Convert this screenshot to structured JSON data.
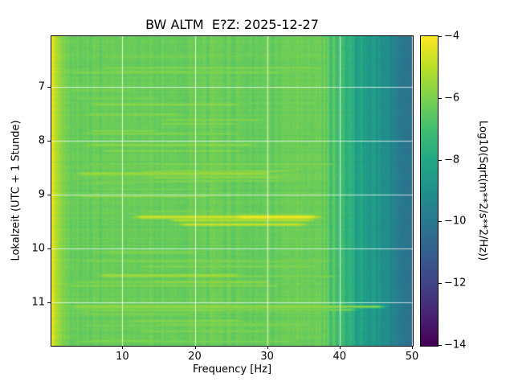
{
  "figure": {
    "background": "#ffffff"
  },
  "chart_data": {
    "type": "heatmap",
    "subtype": "spectrogram",
    "title": "BW ALTM  E?Z: 2025-12-27",
    "xlabel": "Frequency [Hz]",
    "ylabel": "Lokalzeit (UTC + 1 Stunde)",
    "colorbar_label": "Log10(Sqrt(m**2/s**2/Hz))",
    "colormap": "viridis",
    "grid": true,
    "xlim": [
      0.2,
      50
    ],
    "ylim": [
      6.05,
      11.8
    ],
    "y_inverted": true,
    "clim": [
      -14,
      -4
    ],
    "xticks": [
      {
        "value": 10,
        "label": "10"
      },
      {
        "value": 20,
        "label": "20"
      },
      {
        "value": 30,
        "label": "30"
      },
      {
        "value": 40,
        "label": "40"
      },
      {
        "value": 50,
        "label": "50"
      }
    ],
    "yticks": [
      {
        "value": 7,
        "label": "7"
      },
      {
        "value": 8,
        "label": "8"
      },
      {
        "value": 9,
        "label": "9"
      },
      {
        "value": 10,
        "label": "10"
      },
      {
        "value": 11,
        "label": "11"
      }
    ],
    "colorbar_ticks": [
      {
        "value": -4,
        "label": "−4"
      },
      {
        "value": -6,
        "label": "−6"
      },
      {
        "value": -8,
        "label": "−8"
      },
      {
        "value": -10,
        "label": "−10"
      },
      {
        "value": -12,
        "label": "−12"
      },
      {
        "value": -14,
        "label": "−14"
      }
    ],
    "field": {
      "base_level": -6.3,
      "low_freq_boost": {
        "amplitude": 2.3,
        "scale_hz": 1.15
      },
      "highcut": {
        "start1": 37,
        "end1": 45,
        "drop1": 2.3,
        "start2": 44,
        "end2": 50,
        "drop2": 1.6
      }
    },
    "events": [
      {
        "t": 7.32,
        "f1": 6,
        "f2": 26,
        "value": -5.7,
        "h": 0.02
      },
      {
        "t": 7.5,
        "f1": 5,
        "f2": 18,
        "value": -5.8,
        "h": 0.02
      },
      {
        "t": 8.07,
        "f1": 5,
        "f2": 28,
        "value": -5.7,
        "h": 0.02
      },
      {
        "t": 8.6,
        "f1": 4,
        "f2": 30,
        "value": -5.4,
        "h": 0.025
      },
      {
        "t": 8.67,
        "f1": 14,
        "f2": 32,
        "value": -5.7,
        "h": 0.02
      },
      {
        "t": 9.03,
        "f1": 4,
        "f2": 22,
        "value": -5.7,
        "h": 0.02
      },
      {
        "t": 9.41,
        "f1": 12,
        "f2": 37,
        "value": -4.6,
        "h": 0.03
      },
      {
        "t": 9.41,
        "f1": 26,
        "f2": 36,
        "value": -4.15,
        "h": 0.03
      },
      {
        "t": 9.47,
        "f1": 17,
        "f2": 36,
        "value": -4.9,
        "h": 0.022
      },
      {
        "t": 9.55,
        "f1": 18,
        "f2": 35,
        "value": -4.7,
        "h": 0.025
      },
      {
        "t": 10.07,
        "f1": 8,
        "f2": 20,
        "value": -5.8,
        "h": 0.02
      },
      {
        "t": 10.5,
        "f1": 7,
        "f2": 26,
        "value": -5.3,
        "h": 0.028
      },
      {
        "t": 10.62,
        "f1": 14,
        "f2": 30,
        "value": -5.6,
        "h": 0.02
      },
      {
        "t": 11.08,
        "f1": 3,
        "f2": 46,
        "value": -5.6,
        "h": 0.025
      },
      {
        "t": 11.14,
        "f1": 18,
        "f2": 42,
        "value": -5.9,
        "h": 0.02
      }
    ]
  }
}
